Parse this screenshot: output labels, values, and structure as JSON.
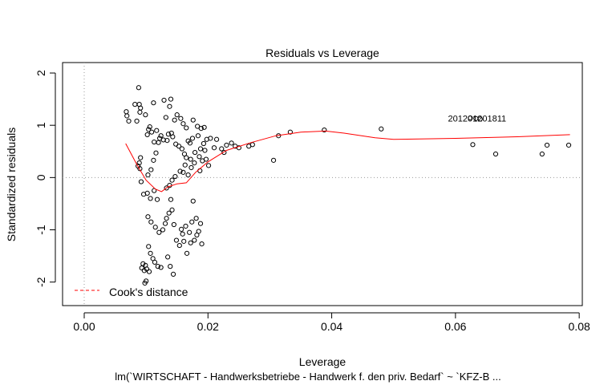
{
  "chart_data": {
    "type": "scatter",
    "title": "Residuals vs Leverage",
    "xlabel": "Leverage",
    "ylabel": "Standardized residuals",
    "subtitle": "lm(`WIRTSCHAFT - Handwerksbetriebe - Handwerk f. den priv. Bedarf` ~ `KFZ-B ...",
    "xlim": [
      -0.0035,
      0.0805
    ],
    "ylim": [
      -2.45,
      2.2
    ],
    "x_ticks": [
      0.0,
      0.02,
      0.04,
      0.06,
      0.08
    ],
    "x_tick_labels": [
      "0.00",
      "0.02",
      "0.04",
      "0.06",
      "0.08"
    ],
    "y_ticks": [
      -2,
      -1,
      0,
      1,
      2
    ],
    "y_tick_labels": [
      "-2",
      "-1",
      "0",
      "1",
      "2"
    ],
    "grid": false,
    "reference_lines": {
      "horizontal_y": 0,
      "vertical_x": 0
    },
    "legend": {
      "position": "bottom-left",
      "entries": [
        {
          "label": "Cook's distance",
          "color": "#ff0000",
          "style": "dashed"
        }
      ]
    },
    "colors": {
      "points": "#000000",
      "smoother": "#ff0000",
      "reference": "#999999"
    },
    "point_labels": {
      "text": "201201201811",
      "x": 0.0635,
      "y": 1.13
    },
    "smoother": {
      "x": [
        0.0067,
        0.0085,
        0.01,
        0.0115,
        0.0125,
        0.0135,
        0.015,
        0.0165,
        0.018,
        0.02,
        0.023,
        0.027,
        0.031,
        0.035,
        0.039,
        0.042,
        0.047,
        0.05,
        0.06,
        0.07,
        0.0785
      ],
      "y": [
        0.65,
        0.25,
        -0.05,
        -0.22,
        -0.27,
        -0.18,
        -0.12,
        -0.1,
        0.1,
        0.3,
        0.52,
        0.67,
        0.8,
        0.87,
        0.89,
        0.85,
        0.76,
        0.73,
        0.75,
        0.78,
        0.82
      ]
    },
    "series": [
      {
        "points": [
          [
            0.0088,
            1.72
          ],
          [
            0.0068,
            1.26
          ],
          [
            0.0069,
            1.18
          ],
          [
            0.0072,
            1.08
          ],
          [
            0.0082,
            1.4
          ],
          [
            0.0089,
            1.4
          ],
          [
            0.0091,
            1.33
          ],
          [
            0.009,
            1.25
          ],
          [
            0.0085,
            1.08
          ],
          [
            0.0099,
            1.2
          ],
          [
            0.0112,
            1.43
          ],
          [
            0.0129,
            1.48
          ],
          [
            0.014,
            1.5
          ],
          [
            0.0138,
            1.36
          ],
          [
            0.015,
            1.2
          ],
          [
            0.0156,
            1.13
          ],
          [
            0.0132,
            1.15
          ],
          [
            0.0146,
            1.1
          ],
          [
            0.016,
            1.03
          ],
          [
            0.0165,
            0.95
          ],
          [
            0.0176,
            1.1
          ],
          [
            0.0183,
            0.98
          ],
          [
            0.0189,
            0.94
          ],
          [
            0.0194,
            0.96
          ],
          [
            0.0168,
            0.7
          ],
          [
            0.0175,
            0.75
          ],
          [
            0.0171,
            0.66
          ],
          [
            0.0184,
            0.8
          ],
          [
            0.0193,
            0.65
          ],
          [
            0.0198,
            0.73
          ],
          [
            0.0204,
            0.75
          ],
          [
            0.021,
            0.57
          ],
          [
            0.0188,
            0.55
          ],
          [
            0.0179,
            0.48
          ],
          [
            0.0195,
            0.52
          ],
          [
            0.0104,
            0.92
          ],
          [
            0.0106,
            0.97
          ],
          [
            0.0109,
            0.87
          ],
          [
            0.0117,
            0.9
          ],
          [
            0.0102,
            0.82
          ],
          [
            0.0124,
            0.8
          ],
          [
            0.0113,
            0.68
          ],
          [
            0.0122,
            0.75
          ],
          [
            0.012,
            0.67
          ],
          [
            0.0128,
            0.72
          ],
          [
            0.0134,
            0.71
          ],
          [
            0.0136,
            0.83
          ],
          [
            0.0141,
            0.85
          ],
          [
            0.0143,
            0.78
          ],
          [
            0.0148,
            0.64
          ],
          [
            0.0153,
            0.6
          ],
          [
            0.0158,
            0.55
          ],
          [
            0.0162,
            0.45
          ],
          [
            0.0165,
            0.38
          ],
          [
            0.0172,
            0.35
          ],
          [
            0.0178,
            0.28
          ],
          [
            0.0186,
            0.4
          ],
          [
            0.0191,
            0.32
          ],
          [
            0.0197,
            0.35
          ],
          [
            0.0201,
            0.23
          ],
          [
            0.0187,
            0.13
          ],
          [
            0.0173,
            0.19
          ],
          [
            0.0168,
            0.05
          ],
          [
            0.0163,
            0.24
          ],
          [
            0.016,
            0.1
          ],
          [
            0.0155,
            0.12
          ],
          [
            0.0147,
            0.02
          ],
          [
            0.0142,
            -0.05
          ],
          [
            0.0138,
            -0.15
          ],
          [
            0.0133,
            -0.2
          ],
          [
            0.0116,
            0.47
          ],
          [
            0.0112,
            0.33
          ],
          [
            0.0108,
            0.15
          ],
          [
            0.0103,
            0.05
          ],
          [
            0.0089,
            0.28
          ],
          [
            0.0087,
            0.22
          ],
          [
            0.009,
            0.17
          ],
          [
            0.0091,
            0.38
          ],
          [
            0.0092,
            -0.08
          ],
          [
            0.0096,
            -0.32
          ],
          [
            0.0102,
            -0.3
          ],
          [
            0.0107,
            -0.4
          ],
          [
            0.0113,
            -0.25
          ],
          [
            0.0118,
            -0.42
          ],
          [
            0.0103,
            -0.75
          ],
          [
            0.0108,
            -0.85
          ],
          [
            0.0115,
            -0.95
          ],
          [
            0.0121,
            -1.05
          ],
          [
            0.0127,
            -1.0
          ],
          [
            0.0131,
            -0.88
          ],
          [
            0.0133,
            -0.78
          ],
          [
            0.0137,
            -0.68
          ],
          [
            0.014,
            -0.42
          ],
          [
            0.0142,
            -0.62
          ],
          [
            0.0145,
            -0.9
          ],
          [
            0.0149,
            -1.2
          ],
          [
            0.0154,
            -1.3
          ],
          [
            0.0159,
            -1.08
          ],
          [
            0.0164,
            -0.93
          ],
          [
            0.017,
            -1.05
          ],
          [
            0.0174,
            -0.85
          ],
          [
            0.0178,
            -1.2
          ],
          [
            0.0181,
            -0.78
          ],
          [
            0.0185,
            -1.03
          ],
          [
            0.0188,
            -0.88
          ],
          [
            0.019,
            -1.27
          ],
          [
            0.0176,
            -0.45
          ],
          [
            0.0182,
            -1.1
          ],
          [
            0.0172,
            -1.25
          ],
          [
            0.0166,
            -1.45
          ],
          [
            0.0161,
            -1.22
          ],
          [
            0.0157,
            -0.99
          ],
          [
            0.0104,
            -1.32
          ],
          [
            0.0107,
            -1.45
          ],
          [
            0.0111,
            -1.55
          ],
          [
            0.0114,
            -1.62
          ],
          [
            0.0119,
            -1.7
          ],
          [
            0.0124,
            -1.72
          ],
          [
            0.0099,
            -1.68
          ],
          [
            0.0101,
            -1.75
          ],
          [
            0.0097,
            -1.78
          ],
          [
            0.0093,
            -1.73
          ],
          [
            0.0095,
            -1.65
          ],
          [
            0.01,
            -1.98
          ],
          [
            0.0098,
            -2.02
          ],
          [
            0.0105,
            -1.8
          ],
          [
            0.0135,
            -1.52
          ],
          [
            0.0139,
            -1.7
          ],
          [
            0.0144,
            -1.85
          ],
          [
            0.0214,
            0.73
          ],
          [
            0.0222,
            0.55
          ],
          [
            0.023,
            0.62
          ],
          [
            0.0238,
            0.66
          ],
          [
            0.0226,
            0.48
          ],
          [
            0.0244,
            0.6
          ],
          [
            0.025,
            0.57
          ],
          [
            0.0266,
            0.6
          ],
          [
            0.0272,
            0.63
          ],
          [
            0.0306,
            0.33
          ],
          [
            0.0314,
            0.8
          ],
          [
            0.0333,
            0.87
          ],
          [
            0.0388,
            0.91
          ],
          [
            0.048,
            0.93
          ],
          [
            0.0628,
            0.63
          ],
          [
            0.0665,
            0.45
          ],
          [
            0.074,
            0.45
          ],
          [
            0.0748,
            0.62
          ],
          [
            0.0783,
            0.62
          ],
          [
            0.0624,
            1.14
          ],
          [
            0.0633,
            1.13
          ],
          [
            0.064,
            1.12
          ]
        ]
      }
    ]
  }
}
